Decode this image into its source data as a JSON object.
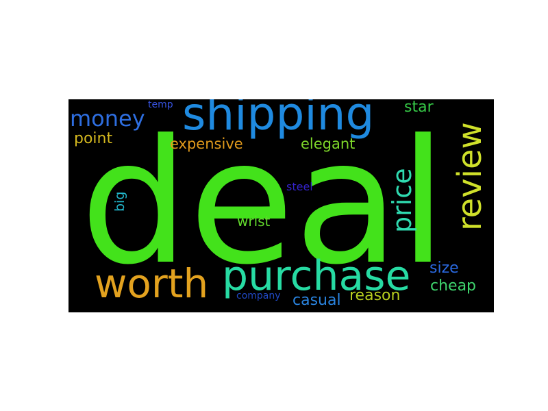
{
  "wordcloud": {
    "background": "#000000",
    "words": {
      "deal": {
        "text": "deal",
        "color": "#43e21b"
      },
      "shipping": {
        "text": "shipping",
        "color": "#1f8ae0"
      },
      "review": {
        "text": "review",
        "color": "#cfe02a"
      },
      "price": {
        "text": "price",
        "color": "#2fdab0"
      },
      "purchase": {
        "text": "purchase",
        "color": "#27dba3"
      },
      "worth": {
        "text": "worth",
        "color": "#e3a21f"
      },
      "money": {
        "text": "money",
        "color": "#2e6ee0"
      },
      "point": {
        "text": "point",
        "color": "#d3b71f"
      },
      "expensive": {
        "text": "expensive",
        "color": "#e19a1c"
      },
      "elegant": {
        "text": "elegant",
        "color": "#7fd92a"
      },
      "star": {
        "text": "star",
        "color": "#36c947"
      },
      "temp": {
        "text": "temp",
        "color": "#3753e0"
      },
      "big": {
        "text": "big",
        "color": "#22b7cc"
      },
      "wrist": {
        "text": "wrist",
        "color": "#61d62c"
      },
      "steel": {
        "text": "steel",
        "color": "#3422c9"
      },
      "size": {
        "text": "size",
        "color": "#2a69e0"
      },
      "cheap": {
        "text": "cheap",
        "color": "#3fd66e"
      },
      "company": {
        "text": "company",
        "color": "#2049c4"
      },
      "casual": {
        "text": "casual",
        "color": "#2a84e0"
      },
      "reason": {
        "text": "reason",
        "color": "#b8cf1f"
      }
    }
  }
}
